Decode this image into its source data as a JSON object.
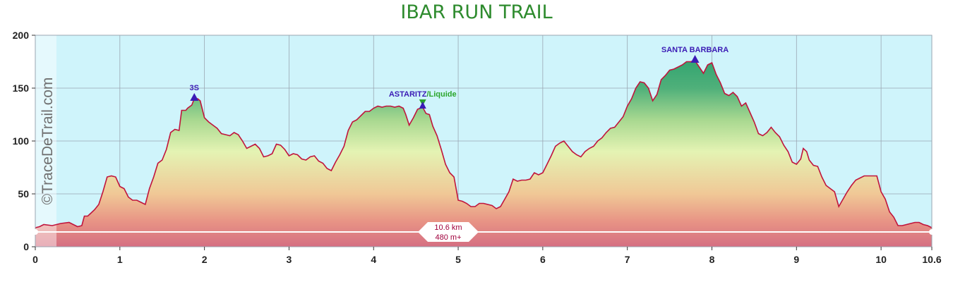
{
  "title": "IBAR RUN TRAIL",
  "watermark": "©TraceDeTrail.com",
  "chart_data": {
    "type": "area",
    "title": "IBAR RUN TRAIL",
    "xlim": [
      0,
      10.6
    ],
    "ylim": [
      0,
      200
    ],
    "x_ticks": [
      "0",
      "1",
      "2",
      "3",
      "4",
      "5",
      "6",
      "7",
      "8",
      "9",
      "10",
      "10.6"
    ],
    "y_ticks": [
      "0",
      "50",
      "100",
      "150",
      "200"
    ],
    "grid": true,
    "summary": {
      "distance": "10.6 km",
      "elevation_gain": "480 m+"
    },
    "colors": {
      "line": "#c0143c",
      "sky": "#cff4fb",
      "grid": "#9aa6b2",
      "poi": "#3b1bb5",
      "refreshment": "#2aa52a"
    },
    "pois": [
      {
        "name": "3S",
        "x": 1.88,
        "y": 140,
        "kind": "summit",
        "color": "#3b1bb5"
      },
      {
        "name": "ASTARITZ",
        "name_suffix": "/Liquide",
        "x": 4.58,
        "y": 132,
        "kind": "refreshment",
        "color": "#3b1bb5",
        "suffix_color": "#2aa52a"
      },
      {
        "name": "SANTA BARBARA",
        "x": 7.8,
        "y": 176,
        "kind": "summit",
        "color": "#3b1bb5"
      }
    ],
    "series": [
      {
        "points": [
          [
            0,
            18
          ],
          [
            0.05,
            19
          ],
          [
            0.1,
            21
          ],
          [
            0.2,
            20
          ],
          [
            0.3,
            22
          ],
          [
            0.4,
            23
          ],
          [
            0.45,
            21
          ],
          [
            0.5,
            19
          ],
          [
            0.55,
            20
          ],
          [
            0.58,
            29
          ],
          [
            0.62,
            29
          ],
          [
            0.7,
            35
          ],
          [
            0.75,
            40
          ],
          [
            0.8,
            52
          ],
          [
            0.85,
            66
          ],
          [
            0.9,
            67
          ],
          [
            0.95,
            66
          ],
          [
            1.0,
            57
          ],
          [
            1.05,
            55
          ],
          [
            1.1,
            47
          ],
          [
            1.15,
            44
          ],
          [
            1.2,
            44
          ],
          [
            1.25,
            42
          ],
          [
            1.3,
            40
          ],
          [
            1.35,
            55
          ],
          [
            1.4,
            66
          ],
          [
            1.45,
            79
          ],
          [
            1.5,
            82
          ],
          [
            1.55,
            92
          ],
          [
            1.6,
            108
          ],
          [
            1.65,
            111
          ],
          [
            1.7,
            110
          ],
          [
            1.73,
            129
          ],
          [
            1.78,
            129
          ],
          [
            1.8,
            131
          ],
          [
            1.85,
            134
          ],
          [
            1.88,
            140
          ],
          [
            1.92,
            140
          ],
          [
            1.95,
            138
          ],
          [
            2.0,
            122
          ],
          [
            2.05,
            118
          ],
          [
            2.1,
            115
          ],
          [
            2.15,
            112
          ],
          [
            2.2,
            107
          ],
          [
            2.25,
            106
          ],
          [
            2.3,
            105
          ],
          [
            2.35,
            108
          ],
          [
            2.4,
            106
          ],
          [
            2.45,
            100
          ],
          [
            2.5,
            93
          ],
          [
            2.55,
            95
          ],
          [
            2.6,
            97
          ],
          [
            2.65,
            93
          ],
          [
            2.7,
            85
          ],
          [
            2.75,
            86
          ],
          [
            2.8,
            88
          ],
          [
            2.85,
            97
          ],
          [
            2.9,
            96
          ],
          [
            2.95,
            92
          ],
          [
            3.0,
            86
          ],
          [
            3.05,
            88
          ],
          [
            3.1,
            87
          ],
          [
            3.15,
            83
          ],
          [
            3.2,
            82
          ],
          [
            3.25,
            85
          ],
          [
            3.3,
            86
          ],
          [
            3.35,
            81
          ],
          [
            3.4,
            79
          ],
          [
            3.45,
            74
          ],
          [
            3.5,
            72
          ],
          [
            3.55,
            80
          ],
          [
            3.6,
            87
          ],
          [
            3.65,
            95
          ],
          [
            3.7,
            110
          ],
          [
            3.75,
            118
          ],
          [
            3.8,
            120
          ],
          [
            3.85,
            124
          ],
          [
            3.9,
            128
          ],
          [
            3.95,
            128
          ],
          [
            4.0,
            131
          ],
          [
            4.05,
            133
          ],
          [
            4.1,
            132
          ],
          [
            4.15,
            133
          ],
          [
            4.2,
            133
          ],
          [
            4.25,
            132
          ],
          [
            4.3,
            133
          ],
          [
            4.35,
            131
          ],
          [
            4.38,
            125
          ],
          [
            4.42,
            115
          ],
          [
            4.47,
            122
          ],
          [
            4.52,
            130
          ],
          [
            4.58,
            132
          ],
          [
            4.62,
            126
          ],
          [
            4.66,
            125
          ],
          [
            4.7,
            114
          ],
          [
            4.75,
            105
          ],
          [
            4.8,
            92
          ],
          [
            4.85,
            78
          ],
          [
            4.9,
            70
          ],
          [
            4.95,
            66
          ],
          [
            5.0,
            44
          ],
          [
            5.05,
            43
          ],
          [
            5.1,
            41
          ],
          [
            5.15,
            38
          ],
          [
            5.2,
            38
          ],
          [
            5.25,
            41
          ],
          [
            5.3,
            41
          ],
          [
            5.35,
            40
          ],
          [
            5.4,
            39
          ],
          [
            5.45,
            36
          ],
          [
            5.5,
            38
          ],
          [
            5.55,
            45
          ],
          [
            5.6,
            52
          ],
          [
            5.65,
            64
          ],
          [
            5.7,
            62
          ],
          [
            5.75,
            63
          ],
          [
            5.8,
            63
          ],
          [
            5.85,
            64
          ],
          [
            5.9,
            70
          ],
          [
            5.95,
            68
          ],
          [
            6.0,
            70
          ],
          [
            6.05,
            78
          ],
          [
            6.1,
            86
          ],
          [
            6.15,
            95
          ],
          [
            6.2,
            98
          ],
          [
            6.25,
            100
          ],
          [
            6.3,
            95
          ],
          [
            6.35,
            90
          ],
          [
            6.4,
            87
          ],
          [
            6.45,
            85
          ],
          [
            6.5,
            90
          ],
          [
            6.55,
            93
          ],
          [
            6.6,
            95
          ],
          [
            6.65,
            100
          ],
          [
            6.7,
            103
          ],
          [
            6.75,
            108
          ],
          [
            6.8,
            112
          ],
          [
            6.85,
            113
          ],
          [
            6.9,
            118
          ],
          [
            6.95,
            123
          ],
          [
            7.0,
            133
          ],
          [
            7.05,
            140
          ],
          [
            7.1,
            150
          ],
          [
            7.15,
            156
          ],
          [
            7.2,
            155
          ],
          [
            7.25,
            150
          ],
          [
            7.3,
            138
          ],
          [
            7.35,
            144
          ],
          [
            7.4,
            158
          ],
          [
            7.45,
            162
          ],
          [
            7.5,
            167
          ],
          [
            7.55,
            168
          ],
          [
            7.6,
            170
          ],
          [
            7.65,
            172
          ],
          [
            7.7,
            175
          ],
          [
            7.75,
            175
          ],
          [
            7.8,
            176
          ],
          [
            7.85,
            170
          ],
          [
            7.9,
            164
          ],
          [
            7.95,
            172
          ],
          [
            8.0,
            174
          ],
          [
            8.05,
            163
          ],
          [
            8.1,
            155
          ],
          [
            8.15,
            145
          ],
          [
            8.2,
            143
          ],
          [
            8.25,
            146
          ],
          [
            8.3,
            142
          ],
          [
            8.35,
            133
          ],
          [
            8.4,
            136
          ],
          [
            8.45,
            127
          ],
          [
            8.5,
            118
          ],
          [
            8.55,
            107
          ],
          [
            8.6,
            105
          ],
          [
            8.65,
            108
          ],
          [
            8.7,
            113
          ],
          [
            8.75,
            108
          ],
          [
            8.8,
            104
          ],
          [
            8.85,
            96
          ],
          [
            8.9,
            90
          ],
          [
            8.95,
            80
          ],
          [
            9.0,
            78
          ],
          [
            9.05,
            83
          ],
          [
            9.08,
            93
          ],
          [
            9.12,
            90
          ],
          [
            9.15,
            82
          ],
          [
            9.2,
            77
          ],
          [
            9.25,
            76
          ],
          [
            9.3,
            66
          ],
          [
            9.35,
            58
          ],
          [
            9.4,
            55
          ],
          [
            9.45,
            52
          ],
          [
            9.5,
            38
          ],
          [
            9.55,
            45
          ],
          [
            9.6,
            52
          ],
          [
            9.65,
            58
          ],
          [
            9.7,
            63
          ],
          [
            9.75,
            65
          ],
          [
            9.8,
            67
          ],
          [
            9.85,
            67
          ],
          [
            9.9,
            67
          ],
          [
            9.95,
            67
          ],
          [
            10.0,
            52
          ],
          [
            10.05,
            45
          ],
          [
            10.1,
            33
          ],
          [
            10.15,
            28
          ],
          [
            10.2,
            20
          ],
          [
            10.25,
            20
          ],
          [
            10.3,
            21
          ],
          [
            10.35,
            22
          ],
          [
            10.4,
            23
          ],
          [
            10.45,
            23
          ],
          [
            10.5,
            21
          ],
          [
            10.55,
            20
          ],
          [
            10.6,
            18
          ]
        ]
      }
    ]
  }
}
